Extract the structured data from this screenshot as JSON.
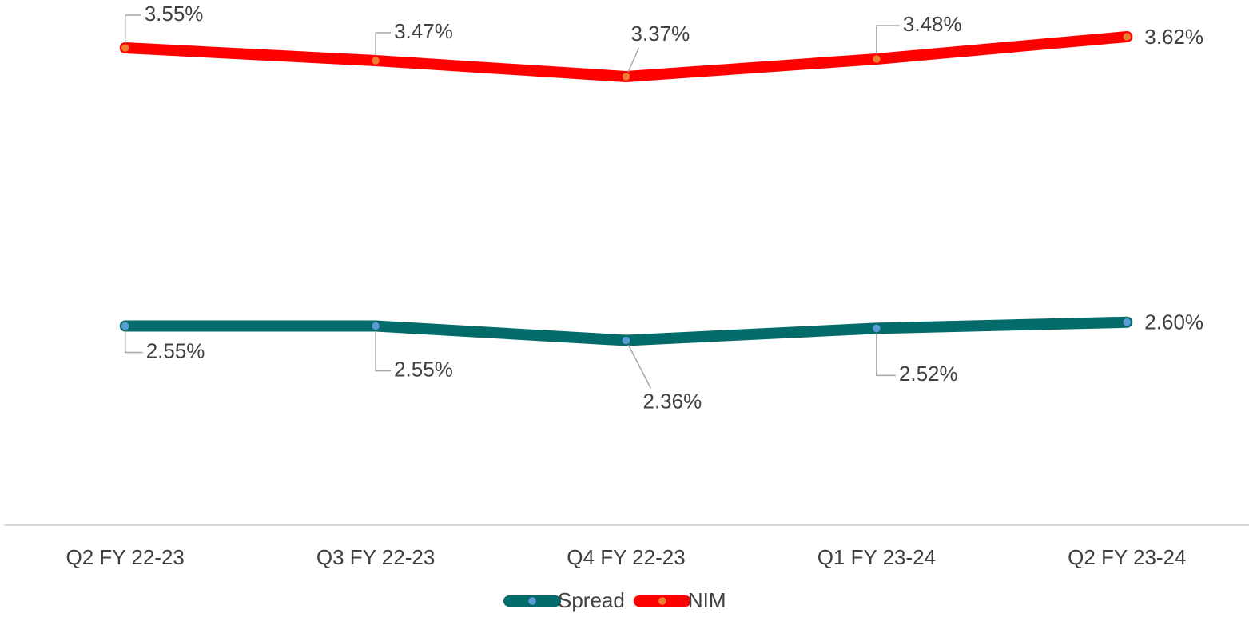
{
  "chart_data": {
    "type": "line",
    "categories": [
      "Q2 FY 22-23",
      "Q3 FY 22-23",
      "Q4 FY 22-23",
      "Q1 FY 23-24",
      "Q2 FY 23-24"
    ],
    "series": [
      {
        "name": "Spread",
        "color": "#036b6a",
        "marker_color": "#5b9bd5",
        "values": [
          2.55,
          2.55,
          2.36,
          2.52,
          2.6
        ],
        "value_labels": [
          "2.55%",
          "2.55%",
          "2.36%",
          "2.52%",
          "2.60%"
        ]
      },
      {
        "name": "NIM",
        "color": "#ff0000",
        "marker_color": "#ed7d31",
        "axis": "y2",
        "values": [
          3.55,
          3.47,
          3.37,
          3.48,
          3.62
        ],
        "value_labels": [
          "3.55%",
          "3.47%",
          "3.37%",
          "3.48%",
          "3.62%"
        ]
      }
    ],
    "ylim": [
      0,
      6.8
    ],
    "y2lim": [
      0.6,
      3.82
    ],
    "legend": "bottom"
  }
}
